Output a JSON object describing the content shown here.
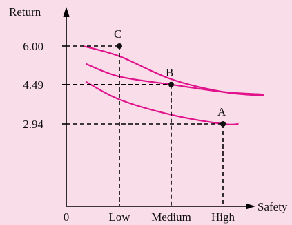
{
  "chart_data": {
    "type": "line",
    "xlabel": "Safety",
    "ylabel": "Return",
    "origin_label": "0",
    "categories": [
      "Low",
      "Medium",
      "High"
    ],
    "points": [
      {
        "label": "C",
        "x": "Low",
        "y": 6.0
      },
      {
        "label": "B",
        "x": "Medium",
        "y": 4.49
      },
      {
        "label": "A",
        "x": "High",
        "y": 2.94
      }
    ],
    "y_ticks": [
      "6.00",
      "4.49",
      "2.94"
    ],
    "curve_color": "#e0138c",
    "series": [
      {
        "values": [
          [
            0.3,
            6.0
          ],
          [
            1.0,
            5.6
          ],
          [
            2.0,
            4.7
          ],
          [
            3.0,
            4.2
          ],
          [
            3.8,
            4.05
          ]
        ]
      },
      {
        "values": [
          [
            0.35,
            5.3
          ],
          [
            1.0,
            4.8
          ],
          [
            2.0,
            4.49
          ],
          [
            3.0,
            4.2
          ],
          [
            3.8,
            4.1
          ]
        ]
      },
      {
        "values": [
          [
            0.35,
            4.6
          ],
          [
            1.0,
            3.9
          ],
          [
            2.0,
            3.3
          ],
          [
            3.0,
            2.94
          ],
          [
            3.3,
            2.94
          ]
        ]
      }
    ]
  }
}
